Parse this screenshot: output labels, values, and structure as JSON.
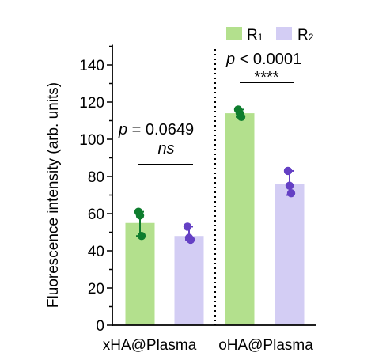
{
  "chart_data": {
    "type": "bar",
    "ylabel": "Fluorescence intensity (arb. units)",
    "ylim": [
      0,
      150
    ],
    "yticks": [
      "0",
      "20",
      "40",
      "60",
      "80",
      "100",
      "120",
      "140"
    ],
    "categories": [
      "xHA@Plasma",
      "oHA@Plasma"
    ],
    "legend_position": "top-right",
    "grid": false,
    "series": [
      {
        "name_main": "R",
        "name_sub": "1",
        "values": [
          55,
          114
        ],
        "error_low": [
          48,
          112
        ],
        "error_high": [
          61,
          116
        ],
        "points": [
          [
            61,
            59,
            48
          ],
          [
            116,
            114,
            112
          ]
        ],
        "bar_color": "#b3e08d",
        "point_color": "#0e7d2e"
      },
      {
        "name_main": "R",
        "name_sub": "2",
        "values": [
          48,
          76
        ],
        "error_low": [
          46,
          70
        ],
        "error_high": [
          53,
          83
        ],
        "points": [
          [
            53,
            47,
            46
          ],
          [
            83,
            75,
            71
          ]
        ],
        "bar_color": "#d3cdf4",
        "point_color": "#6440c4"
      }
    ],
    "annotations": [
      {
        "p_prefix": "p",
        "p_value": " = 0.0649",
        "significance": "ns",
        "sig_italic": true
      },
      {
        "p_prefix": "p",
        "p_value": " < 0.0001",
        "significance": "****",
        "sig_italic": false
      }
    ]
  }
}
